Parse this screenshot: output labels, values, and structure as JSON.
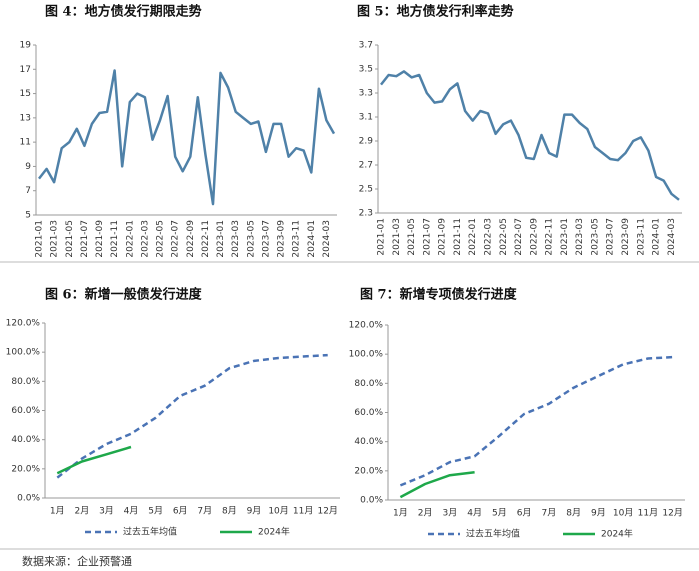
{
  "chart_data": [
    {
      "type": "line",
      "title": "图 4：地方债发行期限走势",
      "categories": [
        "2021-01",
        null,
        "2021-03",
        null,
        "2021-05",
        null,
        "2021-07",
        null,
        "2021-09",
        null,
        "2021-11",
        null,
        "2022-01",
        null,
        "2022-03",
        null,
        "2022-05",
        null,
        "2022-07",
        null,
        "2022-09",
        null,
        "2022-11",
        null,
        "2023-01",
        null,
        "2023-03",
        null,
        "2023-05",
        null,
        "2023-07",
        null,
        "2023-09",
        null,
        "2023-11",
        null,
        "2024-01",
        null,
        "2024-03",
        null
      ],
      "values": [
        8.0,
        8.8,
        7.7,
        10.5,
        11.0,
        12.1,
        10.7,
        12.5,
        13.4,
        13.5,
        16.9,
        9.0,
        14.3,
        15.0,
        14.7,
        11.2,
        12.8,
        14.8,
        9.8,
        8.6,
        9.8,
        14.7,
        10.0,
        5.9,
        16.7,
        15.5,
        13.5,
        13.0,
        12.5,
        12.7,
        10.2,
        12.5,
        12.5,
        9.8,
        10.5,
        10.3,
        8.5,
        15.4,
        12.8,
        11.7
      ],
      "color": "#4f81a8",
      "ylim": [
        5,
        19
      ],
      "yticks": [
        5,
        7,
        9,
        11,
        13,
        15,
        17,
        19
      ]
    },
    {
      "type": "line",
      "title": "图 5：地方债发行利率走势",
      "categories": [
        "2021-01",
        null,
        "2021-03",
        null,
        "2021-05",
        null,
        "2021-07",
        null,
        "2021-09",
        null,
        "2021-11",
        null,
        "2022-01",
        null,
        "2022-03",
        null,
        "2022-05",
        null,
        "2022-07",
        null,
        "2022-09",
        null,
        "2022-11",
        null,
        "2023-01",
        null,
        "2023-03",
        null,
        "2023-05",
        null,
        "2023-07",
        null,
        "2023-09",
        null,
        "2023-11",
        null,
        "2024-01",
        null,
        "2024-03",
        null
      ],
      "values": [
        3.37,
        3.45,
        3.44,
        3.48,
        3.43,
        3.45,
        3.3,
        3.22,
        3.23,
        3.33,
        3.38,
        3.15,
        3.07,
        3.15,
        3.13,
        2.96,
        3.04,
        3.07,
        2.95,
        2.76,
        2.75,
        2.95,
        2.8,
        2.77,
        3.12,
        3.12,
        3.05,
        3.0,
        2.85,
        2.8,
        2.75,
        2.74,
        2.8,
        2.9,
        2.93,
        2.82,
        2.6,
        2.57,
        2.46,
        2.41
      ],
      "color": "#4f81a8",
      "ylim": [
        2.3,
        3.7
      ],
      "yticks": [
        2.3,
        2.5,
        2.7,
        2.9,
        3.1,
        3.3,
        3.5,
        3.7
      ]
    },
    {
      "type": "line",
      "title": "图 6：新增一般债发行进度",
      "categories": [
        "1月",
        "2月",
        "3月",
        "4月",
        "5月",
        "6月",
        "7月",
        "8月",
        "9月",
        "10月",
        "11月",
        "12月"
      ],
      "series": [
        {
          "name": "过去五年均值",
          "color": "#4a73b5",
          "dashed": true,
          "values": [
            14,
            27,
            37,
            44,
            55,
            70,
            77,
            89,
            94,
            96,
            97,
            98
          ]
        },
        {
          "name": "2024年",
          "color": "#1ea84a",
          "values": [
            17,
            25,
            30,
            35,
            null,
            null,
            null,
            null,
            null,
            null,
            null,
            null
          ]
        }
      ],
      "ylim": [
        0,
        120
      ],
      "yticks": [
        {
          "value": 0,
          "label": "0.0%"
        },
        {
          "value": 20,
          "label": "20.0%"
        },
        {
          "value": 40,
          "label": "40.0%"
        },
        {
          "value": 60,
          "label": "60.0%"
        },
        {
          "value": 80,
          "label": "80.0%"
        },
        {
          "value": 100,
          "label": "100.0%"
        },
        {
          "value": 120,
          "label": "120.0%"
        }
      ],
      "legend": "bottom"
    },
    {
      "type": "line",
      "title": "图 7：新增专项债发行进度",
      "categories": [
        "1月",
        "2月",
        "3月",
        "4月",
        "5月",
        "6月",
        "7月",
        "8月",
        "9月",
        "10月",
        "11月",
        "12月"
      ],
      "series": [
        {
          "name": "过去五年均值",
          "color": "#4a73b5",
          "dashed": true,
          "values": [
            10,
            17,
            26,
            30,
            44,
            59,
            66,
            77,
            85,
            93,
            97,
            98
          ]
        },
        {
          "name": "2024年",
          "color": "#1ea84a",
          "values": [
            2,
            11,
            17,
            19,
            null,
            null,
            null,
            null,
            null,
            null,
            null,
            null
          ]
        }
      ],
      "ylim": [
        0,
        120
      ],
      "yticks": [
        {
          "value": 0,
          "label": "0.0%"
        },
        {
          "value": 20,
          "label": "20.0%"
        },
        {
          "value": 40,
          "label": "40.0%"
        },
        {
          "value": 60,
          "label": "60.0%"
        },
        {
          "value": 80,
          "label": "80.0%"
        },
        {
          "value": 100,
          "label": "100.0%"
        },
        {
          "value": 120,
          "label": "120.0%"
        }
      ],
      "legend": "bottom"
    }
  ],
  "source": "数据来源：企业预警通"
}
